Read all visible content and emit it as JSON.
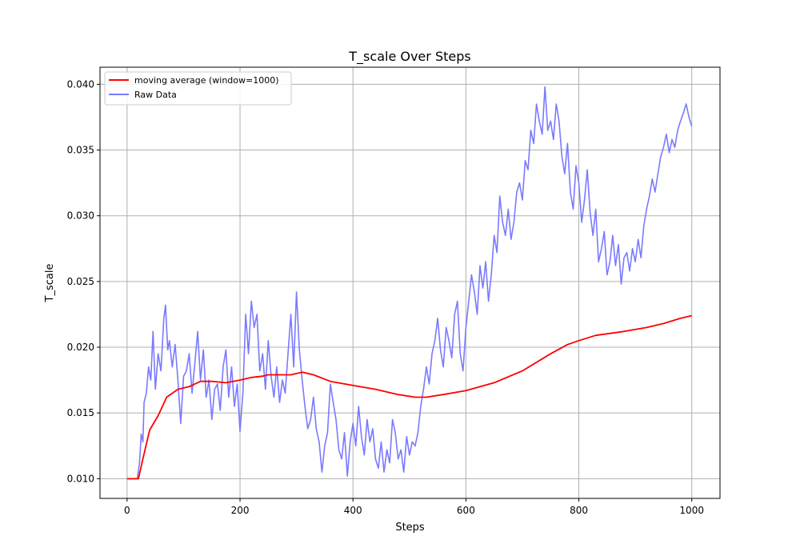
{
  "chart_data": {
    "type": "line",
    "title": "T_scale Over Steps",
    "xlabel": "Steps",
    "ylabel": "T_scale",
    "xlim": [
      -48,
      1050
    ],
    "ylim": [
      0.0085,
      0.0413
    ],
    "xticks": [
      0,
      200,
      400,
      600,
      800,
      1000
    ],
    "xtick_labels": [
      "0",
      "200",
      "400",
      "600",
      "800",
      "1000"
    ],
    "yticks": [
      0.01,
      0.015,
      0.02,
      0.025,
      0.03,
      0.035,
      0.04
    ],
    "ytick_labels": [
      "0.010",
      "0.015",
      "0.020",
      "0.025",
      "0.030",
      "0.035",
      "0.040"
    ],
    "grid": true,
    "legend_position": "top-left",
    "series": [
      {
        "name": "moving average (window=1000)",
        "color": "#ff0000",
        "x": [
          0,
          20,
          28,
          40,
          55,
          70,
          90,
          110,
          130,
          150,
          175,
          200,
          220,
          240,
          250,
          270,
          290,
          310,
          330,
          360,
          400,
          440,
          480,
          510,
          530,
          560,
          600,
          650,
          700,
          750,
          780,
          800,
          830,
          880,
          920,
          950,
          980,
          1000
        ],
        "values": [
          0.01,
          0.01,
          0.0115,
          0.0137,
          0.0148,
          0.0162,
          0.0168,
          0.017,
          0.0174,
          0.0174,
          0.0173,
          0.0175,
          0.0177,
          0.0178,
          0.0179,
          0.0179,
          0.0179,
          0.0181,
          0.0179,
          0.0174,
          0.0171,
          0.0168,
          0.0164,
          0.0162,
          0.0162,
          0.0164,
          0.0167,
          0.0173,
          0.0182,
          0.0195,
          0.0202,
          0.0205,
          0.0209,
          0.0212,
          0.0215,
          0.0218,
          0.0222,
          0.0224
        ]
      },
      {
        "name": "Raw Data",
        "color": "#7a7aff",
        "x": [
          0,
          18,
          22,
          25,
          28,
          30,
          34,
          38,
          42,
          46,
          50,
          55,
          60,
          65,
          68,
          72,
          75,
          80,
          85,
          90,
          95,
          100,
          105,
          110,
          115,
          120,
          125,
          130,
          135,
          140,
          145,
          150,
          155,
          160,
          165,
          170,
          175,
          180,
          185,
          190,
          195,
          200,
          205,
          210,
          215,
          220,
          225,
          230,
          235,
          240,
          245,
          250,
          255,
          260,
          265,
          270,
          275,
          280,
          285,
          290,
          295,
          300,
          305,
          310,
          315,
          320,
          325,
          330,
          335,
          340,
          345,
          350,
          355,
          360,
          365,
          370,
          375,
          380,
          385,
          390,
          395,
          400,
          405,
          410,
          415,
          420,
          425,
          430,
          435,
          440,
          445,
          450,
          455,
          460,
          465,
          470,
          475,
          480,
          485,
          490,
          495,
          500,
          505,
          510,
          515,
          520,
          525,
          530,
          535,
          540,
          545,
          550,
          555,
          560,
          565,
          570,
          575,
          580,
          585,
          590,
          595,
          600,
          605,
          610,
          615,
          620,
          625,
          630,
          635,
          640,
          645,
          650,
          655,
          660,
          665,
          670,
          675,
          680,
          685,
          690,
          695,
          700,
          705,
          710,
          715,
          720,
          725,
          730,
          735,
          740,
          745,
          750,
          755,
          760,
          765,
          770,
          775,
          780,
          785,
          790,
          795,
          800,
          805,
          810,
          815,
          820,
          825,
          830,
          835,
          840,
          845,
          850,
          855,
          860,
          865,
          870,
          875,
          880,
          885,
          890,
          895,
          900,
          905,
          910,
          915,
          920,
          925,
          930,
          935,
          940,
          945,
          950,
          955,
          960,
          965,
          970,
          975,
          980,
          985,
          990,
          995,
          1000
        ],
        "values": [
          0.01,
          0.01,
          0.0112,
          0.0134,
          0.0128,
          0.0158,
          0.0165,
          0.0185,
          0.0175,
          0.0212,
          0.0168,
          0.0195,
          0.0182,
          0.0222,
          0.0232,
          0.0198,
          0.0205,
          0.0185,
          0.0202,
          0.0175,
          0.0142,
          0.0178,
          0.0182,
          0.0195,
          0.0165,
          0.0188,
          0.0212,
          0.0175,
          0.0198,
          0.0162,
          0.0175,
          0.0145,
          0.0168,
          0.0172,
          0.0152,
          0.0185,
          0.0198,
          0.0162,
          0.0185,
          0.0155,
          0.0172,
          0.0136,
          0.0165,
          0.0225,
          0.0195,
          0.0235,
          0.0215,
          0.0225,
          0.0182,
          0.0195,
          0.0168,
          0.0205,
          0.0178,
          0.0162,
          0.0185,
          0.0158,
          0.0175,
          0.0165,
          0.0195,
          0.0225,
          0.0185,
          0.0242,
          0.0198,
          0.0175,
          0.0155,
          0.0138,
          0.0145,
          0.0162,
          0.0138,
          0.0128,
          0.0105,
          0.0125,
          0.0135,
          0.0172,
          0.0158,
          0.0145,
          0.0122,
          0.0115,
          0.0135,
          0.0102,
          0.0128,
          0.0142,
          0.0125,
          0.0155,
          0.0132,
          0.0118,
          0.0145,
          0.0128,
          0.0138,
          0.0115,
          0.0108,
          0.0128,
          0.0105,
          0.0122,
          0.0112,
          0.0145,
          0.0135,
          0.0115,
          0.0122,
          0.0105,
          0.0132,
          0.0118,
          0.0128,
          0.0125,
          0.0135,
          0.0155,
          0.0168,
          0.0185,
          0.0172,
          0.0195,
          0.0205,
          0.0222,
          0.0198,
          0.0185,
          0.0215,
          0.0205,
          0.0192,
          0.0225,
          0.0235,
          0.0195,
          0.0182,
          0.0215,
          0.0235,
          0.0255,
          0.0242,
          0.0225,
          0.0262,
          0.0245,
          0.0265,
          0.0235,
          0.0255,
          0.0285,
          0.0272,
          0.0315,
          0.0295,
          0.0285,
          0.0305,
          0.0282,
          0.0295,
          0.0318,
          0.0325,
          0.0312,
          0.0342,
          0.0335,
          0.0365,
          0.0355,
          0.0385,
          0.0372,
          0.0362,
          0.0398,
          0.0365,
          0.0372,
          0.0358,
          0.0385,
          0.0372,
          0.0345,
          0.0332,
          0.0355,
          0.0318,
          0.0305,
          0.0338,
          0.0325,
          0.0295,
          0.0312,
          0.0335,
          0.0302,
          0.0285,
          0.0305,
          0.0265,
          0.0275,
          0.0288,
          0.0255,
          0.0265,
          0.0285,
          0.0262,
          0.0278,
          0.0248,
          0.0268,
          0.0272,
          0.0258,
          0.0275,
          0.0265,
          0.0282,
          0.0268,
          0.0292,
          0.0305,
          0.0315,
          0.0328,
          0.0318,
          0.0332,
          0.0345,
          0.0352,
          0.0362,
          0.0348,
          0.0358,
          0.0352,
          0.0365,
          0.0372,
          0.0378,
          0.0385,
          0.0375,
          0.0368
        ]
      }
    ]
  }
}
